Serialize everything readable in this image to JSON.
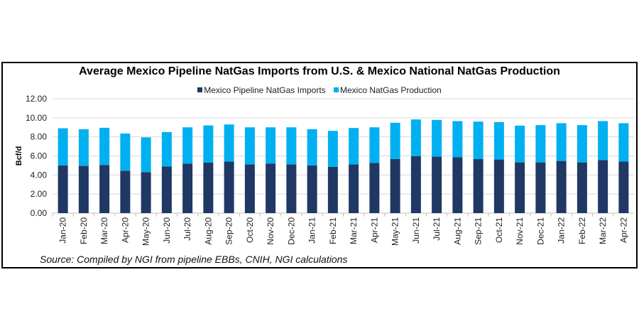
{
  "chart_data": {
    "type": "bar",
    "stacked": true,
    "title": "Average Mexico Pipeline NatGas Imports from U.S. & Mexico National NatGas Production",
    "ylabel": "Bcf/d",
    "xlabel": "",
    "ylim": [
      0,
      12
    ],
    "yticks": [
      "0.00",
      "2.00",
      "4.00",
      "6.00",
      "8.00",
      "10.00",
      "12.00"
    ],
    "grid": true,
    "legend_placement": "top",
    "categories": [
      "Jan-20",
      "Feb-20",
      "Mar-20",
      "Apr-20",
      "May-20",
      "Jun-20",
      "Jul-20",
      "Aug-20",
      "Sep-20",
      "Oct-20",
      "Nov-20",
      "Dec-20",
      "Jan-21",
      "Feb-21",
      "Mar-21",
      "Apr-21",
      "May-21",
      "Jun-21",
      "Jul-21",
      "Aug-21",
      "Sep-21",
      "Oct-21",
      "Nov-21",
      "Dec-21",
      "Jan-22",
      "Feb-22",
      "Mar-22",
      "Apr-22"
    ],
    "series": [
      {
        "name": "Mexico Pipeline NatGas Imports",
        "color": "#1f3864",
        "values": [
          5.0,
          4.95,
          5.05,
          4.45,
          4.3,
          4.9,
          5.2,
          5.3,
          5.4,
          5.1,
          5.2,
          5.1,
          5.0,
          4.85,
          5.1,
          5.27,
          5.67,
          5.97,
          5.92,
          5.85,
          5.67,
          5.62,
          5.32,
          5.32,
          5.47,
          5.32,
          5.57,
          5.4
        ]
      },
      {
        "name": "Mexico NatGas Production",
        "color": "#00b0f0",
        "values": [
          3.9,
          3.85,
          3.9,
          3.9,
          3.65,
          3.6,
          3.8,
          3.9,
          3.9,
          3.9,
          3.8,
          3.9,
          3.8,
          3.78,
          3.83,
          3.73,
          3.81,
          3.86,
          3.86,
          3.8,
          3.93,
          3.93,
          3.86,
          3.91,
          3.96,
          3.91,
          4.08,
          4.03
        ]
      }
    ],
    "source": "Source: Compiled by NGI from pipeline EBBs, CNIH, NGI calculations"
  }
}
